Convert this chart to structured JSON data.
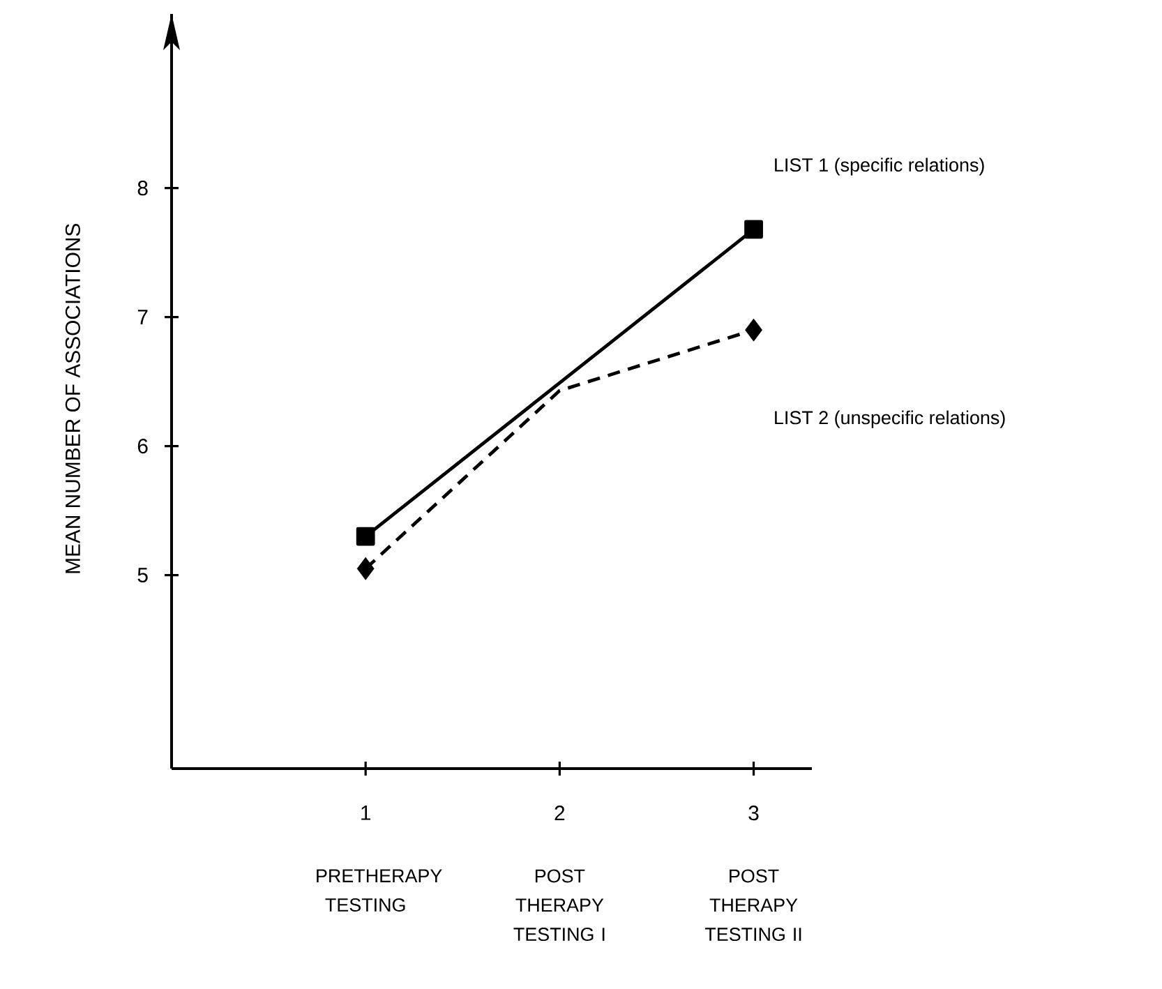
{
  "chart_data": {
    "type": "line",
    "ylabel": "MEAN NUMBER OF ASSOCIATIONS",
    "xlim": [
      0,
      3.3
    ],
    "xticks": [
      1,
      2,
      3
    ],
    "ylim": [
      3.5,
      9.35
    ],
    "yticks": [
      5,
      6,
      7,
      8
    ],
    "series": [
      {
        "name": "LIST 1 (specific relations)",
        "color": "#000000",
        "x": [
          1,
          3
        ],
        "values": [
          5.3,
          7.68
        ],
        "marker": "square",
        "line_style": "solid"
      },
      {
        "name": "LIST 2 (unspecific relations)",
        "color": "#000000",
        "x": [
          1,
          2,
          3
        ],
        "values": [
          5.05,
          6.43,
          6.9
        ],
        "marker": "none",
        "line_style": "dashed"
      },
      {
        "type": "scatter",
        "color": "#000000",
        "x": [
          1,
          3
        ],
        "values": [
          5.05,
          6.9
        ],
        "marker": "diamond"
      }
    ],
    "annotations": [
      "PRETHERAPY TESTING",
      "POST THERAPY TESTING I",
      "POST THERAPY TESTING II"
    ],
    "grid": false
  }
}
